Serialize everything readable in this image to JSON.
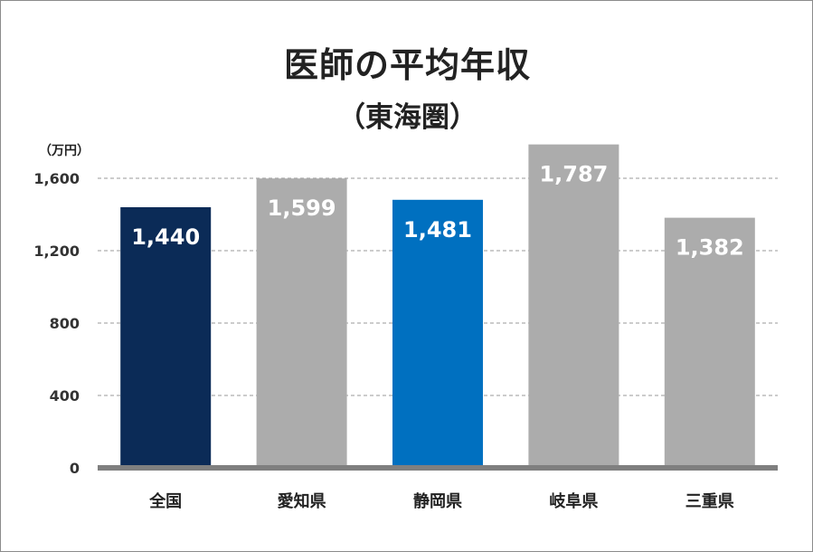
{
  "chart_data": {
    "type": "bar",
    "title": "医師の平均年収",
    "subtitle": "（東海圏）",
    "unit_label": "（万円）",
    "categories": [
      "全国",
      "愛知県",
      "静岡県",
      "岐阜県",
      "三重県"
    ],
    "values": [
      1440,
      1599,
      1481,
      1787,
      1382
    ],
    "data_labels": [
      "1,440",
      "1,599",
      "1,481",
      "1,787",
      "1,382"
    ],
    "ylim": [
      0,
      1800
    ],
    "yticks": [
      0,
      400,
      800,
      1200,
      1600
    ],
    "ytick_labels": [
      "0",
      "400",
      "800",
      "1,200",
      "1,600"
    ],
    "bar_colors": [
      "#0b2b57",
      "#acacac",
      "#0070c0",
      "#acacac",
      "#acacac"
    ],
    "grid": true,
    "grid_style": "dashed",
    "legend": "none"
  }
}
